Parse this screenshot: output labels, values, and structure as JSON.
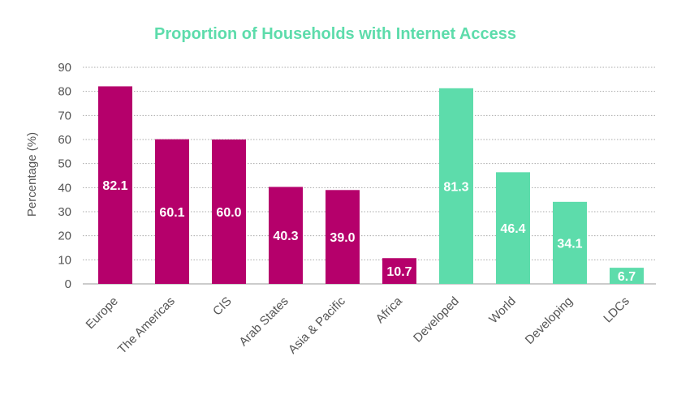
{
  "chart_data": {
    "type": "bar",
    "title": "Proportion of Households with Internet Access",
    "ylabel": "Percentage (%)",
    "xlabel": "",
    "ylim": [
      0,
      90
    ],
    "yticks": [
      0,
      10,
      20,
      30,
      40,
      50,
      60,
      70,
      80,
      90
    ],
    "grid": "horizontal-dotted",
    "categories": [
      "Europe",
      "The Americas",
      "CIS",
      "Arab States",
      "Asia & Pacific",
      "Africa",
      "Developed",
      "World",
      "Developing",
      "LDCs"
    ],
    "values": [
      82.1,
      60.1,
      60.0,
      40.3,
      39.0,
      10.7,
      81.3,
      46.4,
      34.1,
      6.7
    ],
    "data_labels": [
      "82.1",
      "60.1",
      "60.0",
      "40.3",
      "39.0",
      "10.7",
      "81.3",
      "46.4",
      "34.1",
      "6.7"
    ],
    "bar_colors": [
      "#b5006b",
      "#b5006b",
      "#b5006b",
      "#b5006b",
      "#b5006b",
      "#b5006b",
      "#5ddcab",
      "#5ddcab",
      "#5ddcab",
      "#5ddcab"
    ],
    "title_color": "#5ddcab"
  }
}
